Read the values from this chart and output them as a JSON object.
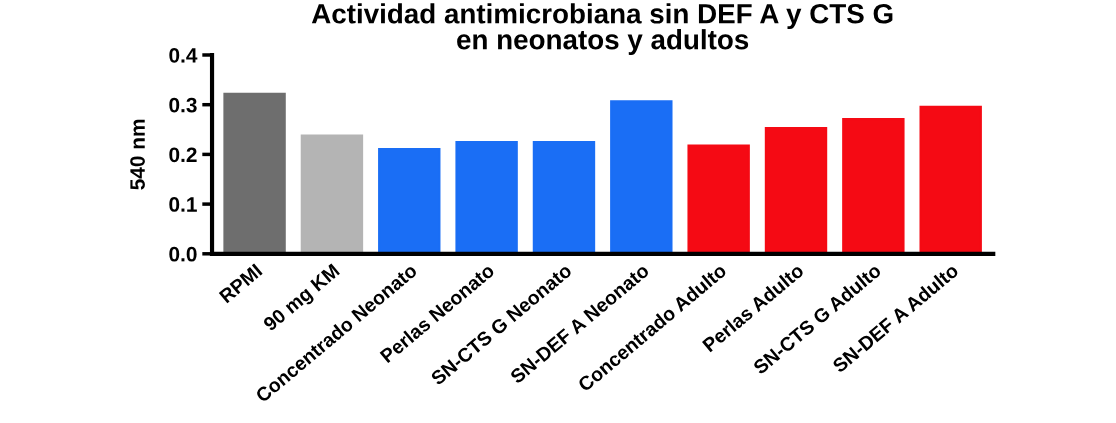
{
  "chart_data": {
    "type": "bar",
    "title": "Actividad antimicrobiana sin DEF A y CTS G\nen neonatos y adultos",
    "ylabel": "540 nm",
    "categories": [
      "RPMI",
      "90 mg KM",
      "Concentrado Neonato",
      "Perlas Neonato",
      "SN-CTS G Neonato",
      "SN-DEF A Neonato",
      "Concentrado Adulto",
      "Perlas Adulto",
      "SN-CTS G Adulto",
      "SN-DEF A Adulto"
    ],
    "values": [
      0.322,
      0.238,
      0.211,
      0.225,
      0.225,
      0.307,
      0.218,
      0.253,
      0.271,
      0.296
    ],
    "colors": [
      "#6e6e6e",
      "#b4b4b4",
      "#1a6ef5",
      "#1a6ef5",
      "#1a6ef5",
      "#1a6ef5",
      "#f50a14",
      "#f50a14",
      "#f50a14",
      "#f50a14"
    ],
    "ylim": [
      0,
      0.4
    ],
    "yticks": [
      {
        "value": 0,
        "label": "0.0"
      },
      0.1,
      0.2,
      0.3,
      0.4
    ],
    "grid": false,
    "legend": false
  }
}
